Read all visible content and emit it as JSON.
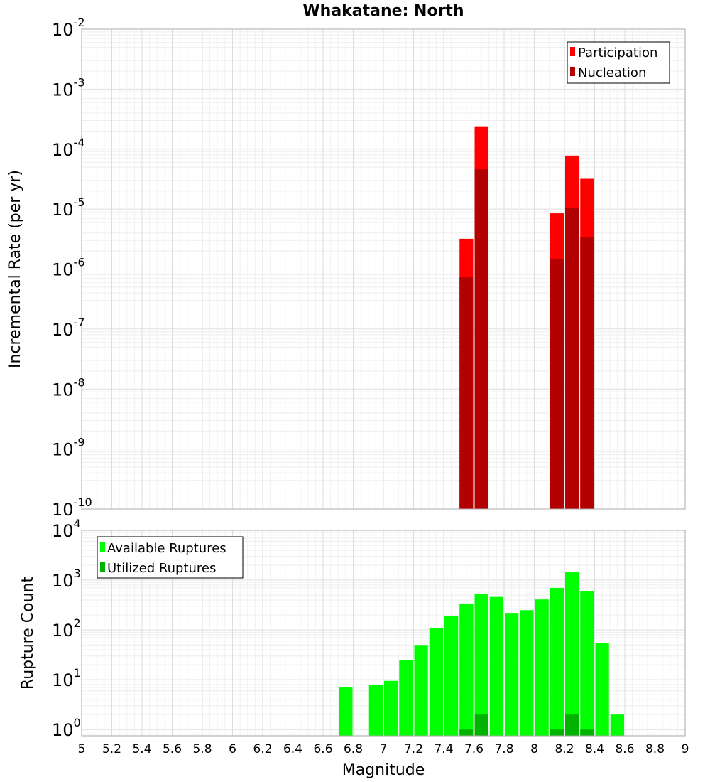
{
  "chart_data": [
    {
      "type": "bar",
      "title": "Whakatane: North",
      "xlabel": "",
      "ylabel": "Incremental Rate (per yr)",
      "y_scale": "log",
      "ylim": [
        1e-10,
        0.01
      ],
      "xlim": [
        5,
        9
      ],
      "bin_width": 0.1,
      "grid": true,
      "legend_placement": "top-right",
      "y_ticks": [
        {
          "base": "10",
          "exp": "-2"
        },
        {
          "base": "10",
          "exp": "-3"
        },
        {
          "base": "10",
          "exp": "-4"
        },
        {
          "base": "10",
          "exp": "-5"
        },
        {
          "base": "10",
          "exp": "-6"
        },
        {
          "base": "10",
          "exp": "-7"
        },
        {
          "base": "10",
          "exp": "-8"
        },
        {
          "base": "10",
          "exp": "-9"
        },
        {
          "base": "10",
          "exp": "-10"
        }
      ],
      "series": [
        {
          "name": "Participation",
          "color": "#ff0000",
          "points": [
            {
              "x": 7.55,
              "y": 3.2e-06
            },
            {
              "x": 7.65,
              "y": 0.00024
            },
            {
              "x": 8.15,
              "y": 8.5e-06
            },
            {
              "x": 8.25,
              "y": 7.8e-05
            },
            {
              "x": 8.35,
              "y": 3.2e-05
            }
          ]
        },
        {
          "name": "Nucleation",
          "color": "#b30000",
          "points": [
            {
              "x": 7.55,
              "y": 7.5e-07
            },
            {
              "x": 7.65,
              "y": 4.6e-05
            },
            {
              "x": 8.15,
              "y": 1.45e-06
            },
            {
              "x": 8.25,
              "y": 1.05e-05
            },
            {
              "x": 8.35,
              "y": 3.4e-06
            }
          ]
        }
      ]
    },
    {
      "type": "bar",
      "title": "",
      "xlabel": "Magnitude",
      "ylabel": "Rupture Count",
      "y_scale": "log",
      "ylim": [
        0.75,
        10000
      ],
      "xlim": [
        5,
        9
      ],
      "bin_width": 0.1,
      "grid": true,
      "legend_placement": "top-left",
      "x_ticks": [
        "5",
        "5.2",
        "5.4",
        "5.6",
        "5.8",
        "6",
        "6.2",
        "6.4",
        "6.6",
        "6.8",
        "7",
        "7.2",
        "7.4",
        "7.6",
        "7.8",
        "8",
        "8.2",
        "8.4",
        "8.6",
        "8.8",
        "9"
      ],
      "y_ticks": [
        {
          "base": "10",
          "exp": "4"
        },
        {
          "base": "10",
          "exp": "3"
        },
        {
          "base": "10",
          "exp": "2"
        },
        {
          "base": "10",
          "exp": "1"
        },
        {
          "base": "10",
          "exp": "0"
        }
      ],
      "series": [
        {
          "name": "Available Ruptures",
          "color": "#00ff00",
          "points": [
            {
              "x": 6.75,
              "y": 7
            },
            {
              "x": 6.95,
              "y": 8
            },
            {
              "x": 7.05,
              "y": 9.5
            },
            {
              "x": 7.15,
              "y": 25
            },
            {
              "x": 7.25,
              "y": 50
            },
            {
              "x": 7.35,
              "y": 110
            },
            {
              "x": 7.45,
              "y": 190
            },
            {
              "x": 7.55,
              "y": 340
            },
            {
              "x": 7.65,
              "y": 520
            },
            {
              "x": 7.75,
              "y": 460
            },
            {
              "x": 7.85,
              "y": 220
            },
            {
              "x": 7.95,
              "y": 250
            },
            {
              "x": 8.05,
              "y": 410
            },
            {
              "x": 8.15,
              "y": 700
            },
            {
              "x": 8.25,
              "y": 1450
            },
            {
              "x": 8.35,
              "y": 610
            },
            {
              "x": 8.45,
              "y": 55
            },
            {
              "x": 8.55,
              "y": 2
            }
          ]
        },
        {
          "name": "Utilized Ruptures",
          "color": "#00b300",
          "points": [
            {
              "x": 7.55,
              "y": 1
            },
            {
              "x": 7.65,
              "y": 2
            },
            {
              "x": 8.15,
              "y": 1
            },
            {
              "x": 8.25,
              "y": 2
            },
            {
              "x": 8.35,
              "y": 1
            }
          ]
        }
      ]
    }
  ]
}
